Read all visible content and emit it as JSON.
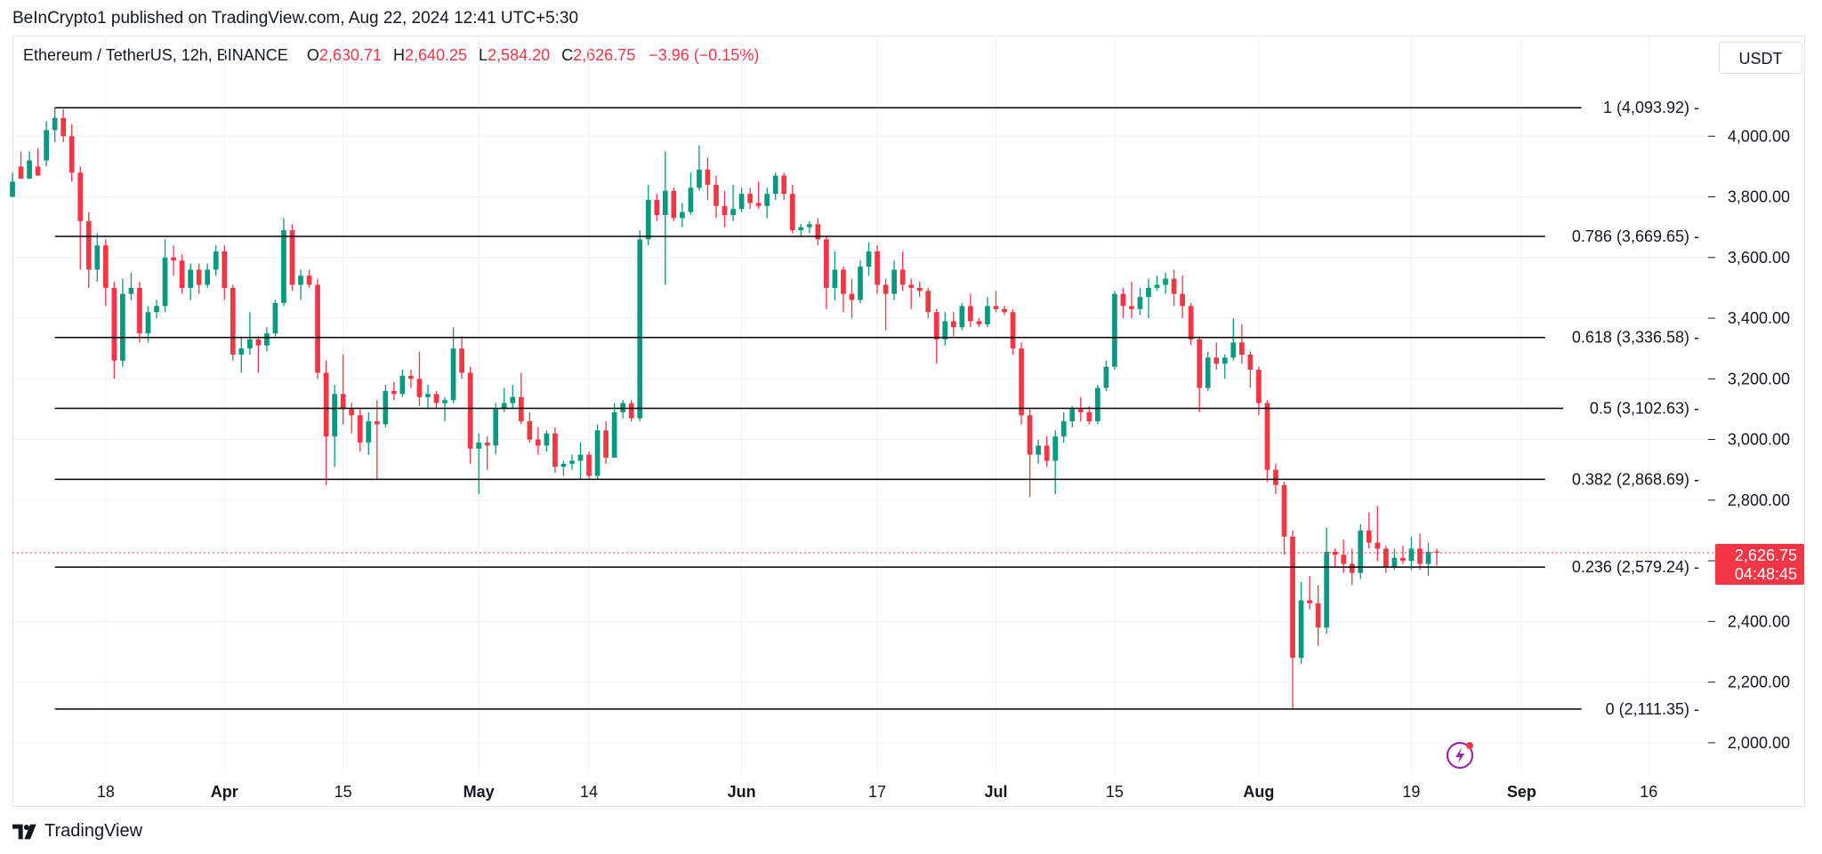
{
  "header": {
    "published_text": "BeInCrypto1 published on TradingView.com, Aug 22, 2024 12:41 UTC+5:30"
  },
  "legend": {
    "symbol": "Ethereum / TetherUS, 12h, BINANCE",
    "open_label": "O",
    "open": "2,630.71",
    "high_label": "H",
    "high": "2,640.25",
    "low_label": "L",
    "low": "2,584.20",
    "close_label": "C",
    "close": "2,626.75",
    "change": "−3.96 (−0.15%)"
  },
  "currency_button": "USDT",
  "price_badge": {
    "price": "2,626.75",
    "countdown": "04:48:45"
  },
  "brand": {
    "name": "TradingView"
  },
  "colors": {
    "up": "#089981",
    "down": "#f23645",
    "fib_line": "#000000",
    "grid": "#f0f3fa",
    "accent_icon": "#9c27b0"
  },
  "chart_data": {
    "type": "candlestick",
    "title": "Ethereum / TetherUS, 12h, BINANCE",
    "ylim": [
      1900,
      4200
    ],
    "y_ticks": [
      2000,
      2200,
      2400,
      2600,
      2800,
      3000,
      3200,
      3400,
      3600,
      3800,
      4000
    ],
    "y_tick_labels": [
      "2,000.00",
      "2,200.00",
      "2,400.00",
      "2,600.00",
      "2,800.00",
      "3,000.00",
      "3,200.00",
      "3,400.00",
      "3,600.00",
      "3,800.00",
      "4,000.00"
    ],
    "x_range": [
      "2024-03-07",
      "2024-09-23"
    ],
    "x_ticks": [
      {
        "date": "2024-03-18",
        "label": "18"
      },
      {
        "date": "2024-04-01",
        "label": "Apr"
      },
      {
        "date": "2024-04-15",
        "label": "15"
      },
      {
        "date": "2024-05-01",
        "label": "May"
      },
      {
        "date": "2024-05-14",
        "label": "14"
      },
      {
        "date": "2024-06-01",
        "label": "Jun"
      },
      {
        "date": "2024-06-17",
        "label": "17"
      },
      {
        "date": "2024-07-01",
        "label": "Jul"
      },
      {
        "date": "2024-07-15",
        "label": "15"
      },
      {
        "date": "2024-08-01",
        "label": "Aug"
      },
      {
        "date": "2024-08-19",
        "label": "19"
      },
      {
        "date": "2024-09-01",
        "label": "Sep"
      },
      {
        "date": "2024-09-16",
        "label": "16"
      }
    ],
    "fib_levels": [
      {
        "ratio": "1",
        "price": 4093.92,
        "label": "1 (4,093.92)"
      },
      {
        "ratio": "0.786",
        "price": 3669.65,
        "label": "0.786 (3,669.65)"
      },
      {
        "ratio": "0.618",
        "price": 3336.58,
        "label": "0.618 (3,336.58)"
      },
      {
        "ratio": "0.5",
        "price": 3102.63,
        "label": "0.5 (3,102.63)"
      },
      {
        "ratio": "0.382",
        "price": 2868.69,
        "label": "0.382 (2,868.69)"
      },
      {
        "ratio": "0.236",
        "price": 2579.24,
        "label": "0.236 (2,579.24)"
      },
      {
        "ratio": "0",
        "price": 2111.35,
        "label": "0 (2,111.35)"
      }
    ],
    "fib_start_date": "2024-03-12",
    "current_price": 2626.75,
    "candles": [
      [
        "2024-03-07",
        3800,
        3880,
        3820,
        3850
      ],
      [
        "2024-03-08",
        3900,
        3950,
        3870,
        3860
      ],
      [
        "2024-03-09",
        3860,
        3950,
        3870,
        3920
      ],
      [
        "2024-03-10",
        3900,
        3960,
        3880,
        3870
      ],
      [
        "2024-03-11",
        3920,
        4050,
        3900,
        4020
      ],
      [
        "2024-03-12",
        4020,
        4094,
        3980,
        4060
      ],
      [
        "2024-03-13",
        4060,
        4090,
        3980,
        4000
      ],
      [
        "2024-03-14",
        4000,
        4040,
        3850,
        3880
      ],
      [
        "2024-03-15",
        3880,
        3900,
        3560,
        3720
      ],
      [
        "2024-03-16",
        3720,
        3750,
        3500,
        3560
      ],
      [
        "2024-03-17",
        3560,
        3680,
        3520,
        3640
      ],
      [
        "2024-03-18",
        3640,
        3660,
        3440,
        3500
      ],
      [
        "2024-03-19",
        3500,
        3520,
        3200,
        3260
      ],
      [
        "2024-03-20",
        3260,
        3530,
        3240,
        3480
      ],
      [
        "2024-03-21",
        3480,
        3550,
        3460,
        3500
      ],
      [
        "2024-03-22",
        3500,
        3520,
        3320,
        3350
      ],
      [
        "2024-03-23",
        3350,
        3440,
        3320,
        3420
      ],
      [
        "2024-03-24",
        3420,
        3460,
        3400,
        3440
      ],
      [
        "2024-03-25",
        3440,
        3660,
        3420,
        3600
      ],
      [
        "2024-03-26",
        3600,
        3640,
        3540,
        3590
      ],
      [
        "2024-03-27",
        3590,
        3610,
        3480,
        3500
      ],
      [
        "2024-03-28",
        3500,
        3580,
        3460,
        3560
      ],
      [
        "2024-03-29",
        3560,
        3580,
        3480,
        3510
      ],
      [
        "2024-03-30",
        3510,
        3580,
        3500,
        3560
      ],
      [
        "2024-03-31",
        3560,
        3640,
        3540,
        3620
      ],
      [
        "2024-04-01",
        3620,
        3640,
        3460,
        3500
      ],
      [
        "2024-04-02",
        3500,
        3510,
        3260,
        3280
      ],
      [
        "2024-04-03",
        3280,
        3340,
        3220,
        3300
      ],
      [
        "2024-04-04",
        3300,
        3420,
        3280,
        3330
      ],
      [
        "2024-04-05",
        3330,
        3340,
        3220,
        3310
      ],
      [
        "2024-04-06",
        3310,
        3370,
        3290,
        3350
      ],
      [
        "2024-04-07",
        3350,
        3460,
        3340,
        3450
      ],
      [
        "2024-04-08",
        3450,
        3730,
        3440,
        3690
      ],
      [
        "2024-04-09",
        3690,
        3710,
        3490,
        3510
      ],
      [
        "2024-04-10",
        3510,
        3560,
        3460,
        3540
      ],
      [
        "2024-04-11",
        3540,
        3560,
        3500,
        3510
      ],
      [
        "2024-04-12",
        3510,
        3530,
        3200,
        3220
      ],
      [
        "2024-04-13",
        3220,
        3260,
        2850,
        3010
      ],
      [
        "2024-04-14",
        3010,
        3180,
        2910,
        3150
      ],
      [
        "2024-04-15",
        3150,
        3280,
        3050,
        3100
      ],
      [
        "2024-04-16",
        3100,
        3120,
        3020,
        3080
      ],
      [
        "2024-04-17",
        3080,
        3100,
        2960,
        2990
      ],
      [
        "2024-04-18",
        2990,
        3090,
        2950,
        3060
      ],
      [
        "2024-04-19",
        3060,
        3130,
        2870,
        3050
      ],
      [
        "2024-04-20",
        3050,
        3180,
        3040,
        3160
      ],
      [
        "2024-04-21",
        3160,
        3190,
        3130,
        3150
      ],
      [
        "2024-04-22",
        3150,
        3230,
        3140,
        3210
      ],
      [
        "2024-04-23",
        3210,
        3230,
        3170,
        3200
      ],
      [
        "2024-04-24",
        3200,
        3290,
        3110,
        3140
      ],
      [
        "2024-04-25",
        3140,
        3180,
        3100,
        3150
      ],
      [
        "2024-04-26",
        3150,
        3160,
        3100,
        3120
      ],
      [
        "2024-04-27",
        3120,
        3140,
        3060,
        3130
      ],
      [
        "2024-04-28",
        3130,
        3370,
        3120,
        3300
      ],
      [
        "2024-04-29",
        3300,
        3340,
        3200,
        3220
      ],
      [
        "2024-04-30",
        3220,
        3240,
        2920,
        2970
      ],
      [
        "2024-05-01",
        2970,
        3020,
        2820,
        2990
      ],
      [
        "2024-05-02",
        2990,
        3010,
        2900,
        2980
      ],
      [
        "2024-05-03",
        2980,
        3120,
        2950,
        3100
      ],
      [
        "2024-05-04",
        3100,
        3170,
        3090,
        3120
      ],
      [
        "2024-05-05",
        3120,
        3180,
        3100,
        3140
      ],
      [
        "2024-05-06",
        3140,
        3220,
        3050,
        3060
      ],
      [
        "2024-05-07",
        3060,
        3090,
        2990,
        3000
      ],
      [
        "2024-05-08",
        3000,
        3040,
        2950,
        2980
      ],
      [
        "2024-05-09",
        2980,
        3030,
        2960,
        3020
      ],
      [
        "2024-05-10",
        3020,
        3040,
        2890,
        2910
      ],
      [
        "2024-05-11",
        2910,
        2930,
        2880,
        2920
      ],
      [
        "2024-05-12",
        2920,
        2950,
        2900,
        2930
      ],
      [
        "2024-05-13",
        2930,
        2990,
        2870,
        2950
      ],
      [
        "2024-05-14",
        2950,
        2960,
        2870,
        2880
      ],
      [
        "2024-05-15",
        2880,
        3050,
        2870,
        3030
      ],
      [
        "2024-05-16",
        3030,
        3060,
        2920,
        2940
      ],
      [
        "2024-05-17",
        2940,
        3120,
        2940,
        3090
      ],
      [
        "2024-05-18",
        3090,
        3130,
        3070,
        3120
      ],
      [
        "2024-05-19",
        3120,
        3130,
        3060,
        3070
      ],
      [
        "2024-05-20",
        3070,
        3690,
        3060,
        3660
      ],
      [
        "2024-05-21",
        3660,
        3840,
        3640,
        3790
      ],
      [
        "2024-05-22",
        3790,
        3810,
        3720,
        3740
      ],
      [
        "2024-05-23",
        3740,
        3950,
        3510,
        3820
      ],
      [
        "2024-05-24",
        3820,
        3830,
        3720,
        3730
      ],
      [
        "2024-05-25",
        3730,
        3780,
        3700,
        3750
      ],
      [
        "2024-05-26",
        3750,
        3880,
        3740,
        3830
      ],
      [
        "2024-05-27",
        3830,
        3970,
        3820,
        3890
      ],
      [
        "2024-05-28",
        3890,
        3930,
        3790,
        3840
      ],
      [
        "2024-05-29",
        3840,
        3870,
        3730,
        3770
      ],
      [
        "2024-05-30",
        3770,
        3820,
        3700,
        3740
      ],
      [
        "2024-05-31",
        3740,
        3840,
        3720,
        3760
      ],
      [
        "2024-06-01",
        3760,
        3830,
        3750,
        3810
      ],
      [
        "2024-06-02",
        3810,
        3830,
        3760,
        3780
      ],
      [
        "2024-06-03",
        3780,
        3850,
        3760,
        3770
      ],
      [
        "2024-06-04",
        3770,
        3830,
        3730,
        3810
      ],
      [
        "2024-06-05",
        3810,
        3880,
        3790,
        3870
      ],
      [
        "2024-06-06",
        3870,
        3880,
        3790,
        3810
      ],
      [
        "2024-06-07",
        3810,
        3840,
        3680,
        3690
      ],
      [
        "2024-06-08",
        3690,
        3710,
        3670,
        3700
      ],
      [
        "2024-06-09",
        3700,
        3720,
        3680,
        3710
      ],
      [
        "2024-06-10",
        3710,
        3730,
        3640,
        3660
      ],
      [
        "2024-06-11",
        3660,
        3670,
        3430,
        3500
      ],
      [
        "2024-06-12",
        3500,
        3620,
        3460,
        3560
      ],
      [
        "2024-06-13",
        3560,
        3570,
        3420,
        3480
      ],
      [
        "2024-06-14",
        3480,
        3530,
        3400,
        3460
      ],
      [
        "2024-06-15",
        3460,
        3590,
        3450,
        3570
      ],
      [
        "2024-06-16",
        3570,
        3650,
        3540,
        3620
      ],
      [
        "2024-06-17",
        3620,
        3640,
        3480,
        3510
      ],
      [
        "2024-06-18",
        3510,
        3530,
        3360,
        3480
      ],
      [
        "2024-06-19",
        3480,
        3590,
        3460,
        3560
      ],
      [
        "2024-06-20",
        3560,
        3620,
        3490,
        3510
      ],
      [
        "2024-06-21",
        3510,
        3530,
        3430,
        3500
      ],
      [
        "2024-06-22",
        3500,
        3520,
        3470,
        3490
      ],
      [
        "2024-06-23",
        3490,
        3500,
        3400,
        3420
      ],
      [
        "2024-06-24",
        3420,
        3430,
        3250,
        3330
      ],
      [
        "2024-06-25",
        3330,
        3420,
        3310,
        3390
      ],
      [
        "2024-06-26",
        3390,
        3420,
        3340,
        3370
      ],
      [
        "2024-06-27",
        3370,
        3450,
        3360,
        3440
      ],
      [
        "2024-06-28",
        3440,
        3480,
        3370,
        3390
      ],
      [
        "2024-06-29",
        3390,
        3400,
        3370,
        3380
      ],
      [
        "2024-06-30",
        3380,
        3470,
        3370,
        3440
      ],
      [
        "2024-07-01",
        3440,
        3490,
        3420,
        3430
      ],
      [
        "2024-07-02",
        3430,
        3440,
        3410,
        3420
      ],
      [
        "2024-07-03",
        3420,
        3430,
        3280,
        3300
      ],
      [
        "2024-07-04",
        3300,
        3320,
        3050,
        3080
      ],
      [
        "2024-07-05",
        3080,
        3100,
        2810,
        2950
      ],
      [
        "2024-07-06",
        2950,
        3000,
        2920,
        2980
      ],
      [
        "2024-07-07",
        2980,
        3010,
        2910,
        2930
      ],
      [
        "2024-07-08",
        2930,
        3030,
        2820,
        3010
      ],
      [
        "2024-07-09",
        3010,
        3090,
        2990,
        3060
      ],
      [
        "2024-07-10",
        3060,
        3110,
        3040,
        3100
      ],
      [
        "2024-07-11",
        3100,
        3140,
        3060,
        3090
      ],
      [
        "2024-07-12",
        3090,
        3110,
        3050,
        3060
      ],
      [
        "2024-07-13",
        3060,
        3180,
        3050,
        3170
      ],
      [
        "2024-07-14",
        3170,
        3260,
        3160,
        3240
      ],
      [
        "2024-07-15",
        3240,
        3490,
        3230,
        3480
      ],
      [
        "2024-07-16",
        3480,
        3500,
        3400,
        3440
      ],
      [
        "2024-07-17",
        3440,
        3520,
        3400,
        3430
      ],
      [
        "2024-07-18",
        3430,
        3500,
        3410,
        3470
      ],
      [
        "2024-07-19",
        3470,
        3530,
        3400,
        3500
      ],
      [
        "2024-07-20",
        3500,
        3540,
        3490,
        3510
      ],
      [
        "2024-07-21",
        3510,
        3550,
        3480,
        3530
      ],
      [
        "2024-07-22",
        3530,
        3560,
        3440,
        3480
      ],
      [
        "2024-07-23",
        3480,
        3540,
        3400,
        3440
      ],
      [
        "2024-07-24",
        3440,
        3450,
        3310,
        3330
      ],
      [
        "2024-07-25",
        3330,
        3340,
        3090,
        3170
      ],
      [
        "2024-07-26",
        3170,
        3290,
        3160,
        3270
      ],
      [
        "2024-07-27",
        3270,
        3320,
        3230,
        3250
      ],
      [
        "2024-07-28",
        3250,
        3280,
        3200,
        3270
      ],
      [
        "2024-07-29",
        3270,
        3400,
        3260,
        3320
      ],
      [
        "2024-07-30",
        3320,
        3380,
        3250,
        3280
      ],
      [
        "2024-07-31",
        3280,
        3290,
        3170,
        3230
      ],
      [
        "2024-08-01",
        3230,
        3240,
        3080,
        3120
      ],
      [
        "2024-08-02",
        3120,
        3130,
        2860,
        2900
      ],
      [
        "2024-08-03",
        2900,
        2920,
        2820,
        2850
      ],
      [
        "2024-08-04",
        2850,
        2860,
        2620,
        2680
      ],
      [
        "2024-08-05",
        2680,
        2700,
        2111,
        2280
      ],
      [
        "2024-08-06",
        2280,
        2530,
        2260,
        2470
      ],
      [
        "2024-08-07",
        2470,
        2550,
        2440,
        2460
      ],
      [
        "2024-08-08",
        2460,
        2520,
        2320,
        2380
      ],
      [
        "2024-08-09",
        2380,
        2710,
        2360,
        2630
      ],
      [
        "2024-08-10",
        2630,
        2640,
        2580,
        2620
      ],
      [
        "2024-08-11",
        2620,
        2670,
        2560,
        2590
      ],
      [
        "2024-08-12",
        2590,
        2640,
        2520,
        2560
      ],
      [
        "2024-08-13",
        2560,
        2720,
        2540,
        2700
      ],
      [
        "2024-08-14",
        2700,
        2760,
        2640,
        2660
      ],
      [
        "2024-08-15",
        2660,
        2780,
        2600,
        2640
      ],
      [
        "2024-08-16",
        2640,
        2650,
        2560,
        2580
      ],
      [
        "2024-08-17",
        2580,
        2640,
        2570,
        2610
      ],
      [
        "2024-08-18",
        2610,
        2650,
        2590,
        2600
      ],
      [
        "2024-08-19",
        2600,
        2680,
        2570,
        2640
      ],
      [
        "2024-08-20",
        2640,
        2690,
        2570,
        2590
      ],
      [
        "2024-08-21",
        2590,
        2660,
        2550,
        2630
      ],
      [
        "2024-08-22",
        2630.71,
        2640.25,
        2584.2,
        2626.75
      ]
    ]
  }
}
